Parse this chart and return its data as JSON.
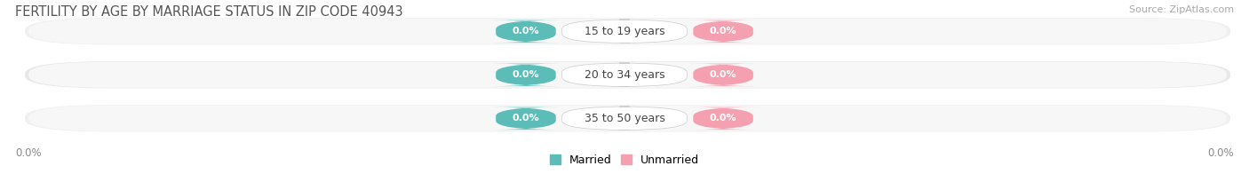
{
  "title": "FERTILITY BY AGE BY MARRIAGE STATUS IN ZIP CODE 40943",
  "source": "Source: ZipAtlas.com",
  "categories": [
    "15 to 19 years",
    "20 to 34 years",
    "35 to 50 years"
  ],
  "married_values": [
    0.0,
    0.0,
    0.0
  ],
  "unmarried_values": [
    0.0,
    0.0,
    0.0
  ],
  "married_color": "#5bbcb8",
  "unmarried_color": "#f4a0b0",
  "row_bg_color_odd": "#f0f0f0",
  "row_bg_color_even": "#e8e8e8",
  "bar_inner_color": "#e8e8e8",
  "title_fontsize": 10.5,
  "source_fontsize": 8,
  "axis_label": "0.0%",
  "background_color": "#ffffff",
  "legend_married": "Married",
  "legend_unmarried": "Unmarried",
  "pill_value_fontsize": 8,
  "cat_label_fontsize": 9
}
